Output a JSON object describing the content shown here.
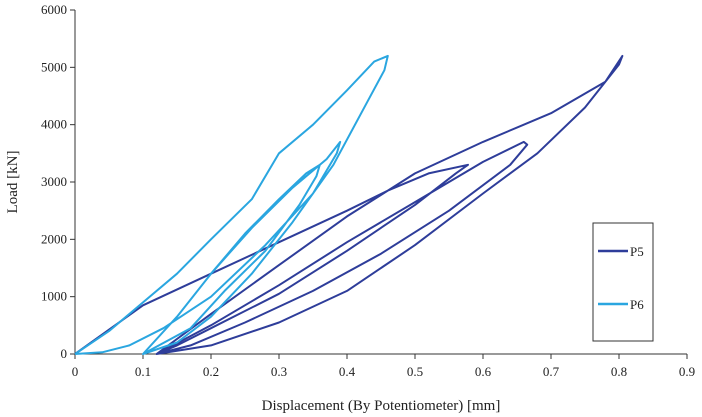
{
  "chart_data": {
    "type": "line",
    "title": "",
    "xlabel": "Displacement (By Potentiometer) [mm]",
    "ylabel": "Load [kN]",
    "xlim": [
      0,
      0.9
    ],
    "ylim": [
      0,
      6000
    ],
    "xticks": [
      "0",
      "0.1",
      "0.2",
      "0.3",
      "0.4",
      "0.5",
      "0.6",
      "0.7",
      "0.8",
      "0.9"
    ],
    "yticks": [
      "0",
      "1000",
      "2000",
      "3000",
      "4000",
      "5000",
      "6000"
    ],
    "grid": false,
    "legend_position": "right",
    "series": [
      {
        "name": "P5",
        "color": "#2e3d9a",
        "x": [
          0.0,
          0.1,
          0.2,
          0.3,
          0.4,
          0.46,
          0.52,
          0.578,
          0.56,
          0.5,
          0.4,
          0.3,
          0.2,
          0.15,
          0.12,
          0.12,
          0.2,
          0.3,
          0.4,
          0.5,
          0.6,
          0.66,
          0.665,
          0.64,
          0.55,
          0.45,
          0.35,
          0.25,
          0.17,
          0.12,
          0.12,
          0.2,
          0.3,
          0.4,
          0.5,
          0.6,
          0.7,
          0.78,
          0.805,
          0.8,
          0.75,
          0.68,
          0.6,
          0.5,
          0.4,
          0.3,
          0.2,
          0.12
        ],
        "y": [
          0,
          850,
          1400,
          1950,
          2500,
          2850,
          3150,
          3300,
          3150,
          2600,
          1800,
          1050,
          450,
          150,
          0,
          0,
          500,
          1200,
          1950,
          2650,
          3350,
          3700,
          3650,
          3300,
          2500,
          1750,
          1100,
          550,
          150,
          0,
          0,
          700,
          1550,
          2400,
          3150,
          3700,
          4200,
          4750,
          5200,
          5050,
          4300,
          3500,
          2800,
          1900,
          1100,
          550,
          150,
          0
        ]
      },
      {
        "name": "P6",
        "color": "#2aa6e0",
        "x": [
          0.0,
          0.05,
          0.1,
          0.15,
          0.2,
          0.26,
          0.3,
          0.35,
          0.4,
          0.44,
          0.46,
          0.455,
          0.43,
          0.38,
          0.32,
          0.26,
          0.2,
          0.15,
          0.1,
          0.1,
          0.15,
          0.2,
          0.25,
          0.3,
          0.34,
          0.36,
          0.355,
          0.33,
          0.28,
          0.22,
          0.17,
          0.1,
          0.1,
          0.15,
          0.2,
          0.26,
          0.32,
          0.37,
          0.39,
          0.385,
          0.35,
          0.28,
          0.2,
          0.13,
          0.08,
          0.04,
          0.0
        ],
        "y": [
          0,
          400,
          900,
          1400,
          2000,
          2700,
          3500,
          4000,
          4600,
          5100,
          5200,
          4950,
          4400,
          3300,
          2300,
          1400,
          650,
          200,
          0,
          0,
          650,
          1400,
          2100,
          2700,
          3150,
          3300,
          3100,
          2600,
          1800,
          1100,
          450,
          0,
          0,
          650,
          1400,
          2200,
          2900,
          3400,
          3700,
          3500,
          2800,
          1900,
          1000,
          450,
          150,
          30,
          0
        ]
      }
    ]
  }
}
